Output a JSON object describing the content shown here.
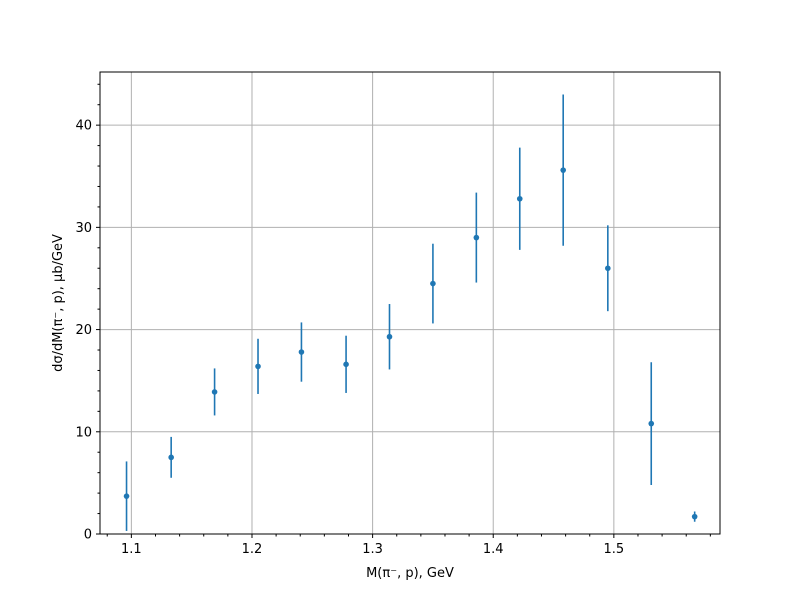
{
  "chart_data": {
    "type": "scatter",
    "title": "",
    "xlabel": "M(π⁻, p), GeV",
    "ylabel": "dσ/dM(π⁻, p), μb/GeV",
    "xlim": [
      1.074,
      1.588
    ],
    "ylim": [
      0,
      45.2
    ],
    "x_ticks": [
      1.1,
      1.2,
      1.3,
      1.4,
      1.5
    ],
    "x_tick_labels": [
      "1.1",
      "1.2",
      "1.3",
      "1.4",
      "1.5"
    ],
    "x_minor_ticks": [
      1.08,
      1.12,
      1.14,
      1.16,
      1.18,
      1.22,
      1.24,
      1.26,
      1.28,
      1.32,
      1.34,
      1.36,
      1.38,
      1.42,
      1.44,
      1.46,
      1.48,
      1.52,
      1.54,
      1.56,
      1.58
    ],
    "y_ticks": [
      0,
      10,
      20,
      30,
      40
    ],
    "y_tick_labels": [
      "0",
      "10",
      "20",
      "30",
      "40"
    ],
    "y_minor_ticks": [
      2,
      4,
      6,
      8,
      12,
      14,
      16,
      18,
      22,
      24,
      26,
      28,
      32,
      34,
      36,
      38,
      42,
      44
    ],
    "grid": true,
    "series": [
      {
        "color": "#1f77b4",
        "x": [
          1.096,
          1.133,
          1.169,
          1.205,
          1.241,
          1.278,
          1.314,
          1.35,
          1.386,
          1.422,
          1.458,
          1.495,
          1.531,
          1.567
        ],
        "y": [
          3.7,
          7.5,
          13.9,
          16.4,
          17.8,
          16.6,
          19.3,
          24.5,
          29.0,
          32.8,
          35.6,
          26.0,
          10.8,
          1.7
        ],
        "yerr": [
          3.4,
          2.0,
          2.3,
          2.7,
          2.9,
          2.8,
          3.2,
          3.9,
          4.4,
          5.0,
          7.4,
          4.2,
          6.0,
          0.5
        ]
      }
    ]
  }
}
